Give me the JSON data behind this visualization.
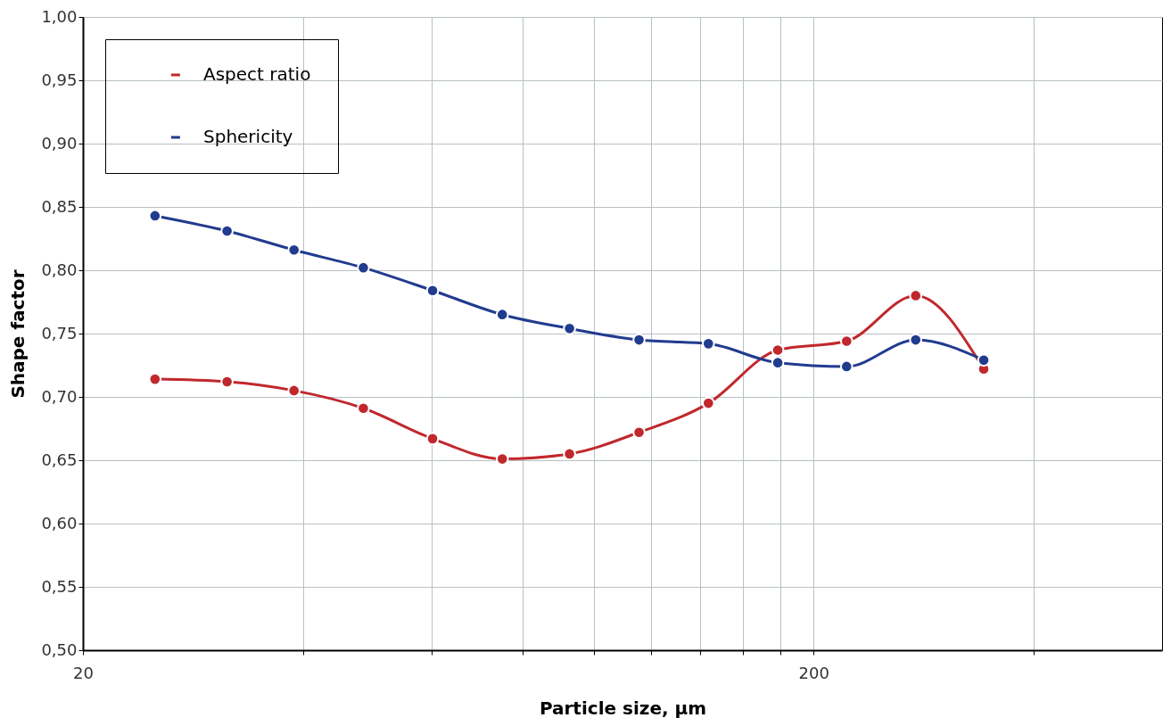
{
  "chart_data": {
    "type": "line",
    "xlabel": "Particle size, µm",
    "ylabel": "Shape factor",
    "x": [
      25.1,
      31.5,
      38.9,
      48.4,
      60.2,
      75.0,
      92.7,
      115.4,
      143.6,
      178.7,
      222,
      276,
      342
    ],
    "series": [
      {
        "name": "Aspect ratio",
        "color": "#c0282d",
        "values": [
          0.714,
          0.712,
          0.705,
          0.691,
          0.667,
          0.651,
          0.655,
          0.672,
          0.695,
          0.737,
          0.744,
          0.78,
          0.722
        ]
      },
      {
        "name": "Sphericity",
        "color": "#213b8f",
        "values": [
          0.843,
          0.831,
          0.816,
          0.802,
          0.784,
          0.765,
          0.754,
          0.745,
          0.742,
          0.727,
          0.724,
          0.745,
          0.729
        ]
      }
    ],
    "log": "x",
    "xlim": [
      20,
      600
    ],
    "xticks": [
      20,
      {
        "value": 40,
        "label": null
      },
      {
        "value": 60,
        "label": null
      },
      {
        "value": 80,
        "label": null
      },
      {
        "value": 100,
        "label": null
      },
      {
        "value": 120,
        "label": null
      },
      {
        "value": 140,
        "label": null
      },
      {
        "value": 160,
        "label": null
      },
      {
        "value": 180,
        "label": null
      },
      200,
      {
        "value": 400,
        "label": null
      }
    ],
    "ylim": [
      0.5,
      1.0
    ],
    "yticks": [
      {
        "value": 0.5,
        "label": "0,50"
      },
      {
        "value": 0.55,
        "label": "0,55"
      },
      {
        "value": 0.6,
        "label": "0,60"
      },
      {
        "value": 0.65,
        "label": "0,65"
      },
      {
        "value": 0.7,
        "label": "0,70"
      },
      {
        "value": 0.75,
        "label": "0,75"
      },
      {
        "value": 0.8,
        "label": "0,80"
      },
      {
        "value": 0.85,
        "label": "0,85"
      },
      {
        "value": 0.9,
        "label": "0,90"
      },
      {
        "value": 0.95,
        "label": "0,95"
      },
      {
        "value": 1.0,
        "label": "1,00"
      }
    ],
    "grid": true,
    "legend": "top left",
    "marker": "circle",
    "line_style": "solid"
  }
}
